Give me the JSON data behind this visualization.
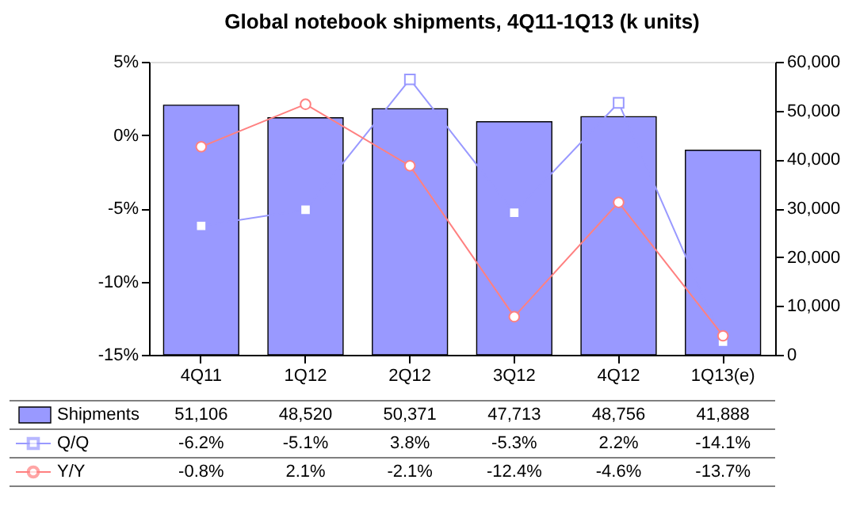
{
  "chart_data": {
    "type": "bar",
    "title": "Global notebook shipments, 4Q11-1Q13 (k units)",
    "categories": [
      "4Q11",
      "1Q12",
      "2Q12",
      "3Q12",
      "4Q12",
      "1Q13(e)"
    ],
    "series": [
      {
        "name": "Shipments",
        "color": "#9999ff",
        "axis": "y2",
        "values": [
          51106,
          48520,
          50371,
          47713,
          48756,
          41888
        ],
        "value_labels": [
          "51,106",
          "48,520",
          "50,371",
          "47,713",
          "48,756",
          "41,888"
        ]
      },
      {
        "name": "Q/Q",
        "type": "line",
        "marker": "square",
        "color": "#9999ff",
        "values": [
          -6.2,
          -5.1,
          3.8,
          -5.3,
          2.2,
          -14.1
        ],
        "value_labels": [
          "-6.2%",
          "-5.1%",
          "3.8%",
          "-5.3%",
          "2.2%",
          "-14.1%"
        ]
      },
      {
        "name": "Y/Y",
        "type": "line",
        "marker": "circle",
        "color": "#ff8080",
        "values": [
          -0.8,
          2.1,
          -2.1,
          -12.4,
          -4.6,
          -13.7
        ],
        "value_labels": [
          "-0.8%",
          "2.1%",
          "-2.1%",
          "-12.4%",
          "-4.6%",
          "-13.7%"
        ]
      }
    ],
    "ylim": [
      -15,
      5
    ],
    "yticks": [
      {
        "value": -15,
        "label": "-15%"
      },
      {
        "value": -10,
        "label": "-10%"
      },
      {
        "value": -5,
        "label": "-5%"
      },
      {
        "value": 0,
        "label": "0%"
      },
      {
        "value": 5,
        "label": "5%"
      }
    ],
    "y2lim": [
      0,
      60000
    ],
    "y2ticks": [
      {
        "value": 0,
        "label": "0"
      },
      {
        "value": 10000,
        "label": "10,000"
      },
      {
        "value": 20000,
        "label": "20,000"
      },
      {
        "value": 30000,
        "label": "30,000"
      },
      {
        "value": 40000,
        "label": "40,000"
      },
      {
        "value": 50000,
        "label": "50,000"
      },
      {
        "value": 60000,
        "label": "60,000"
      }
    ],
    "legend": "bottom",
    "grid": false
  }
}
